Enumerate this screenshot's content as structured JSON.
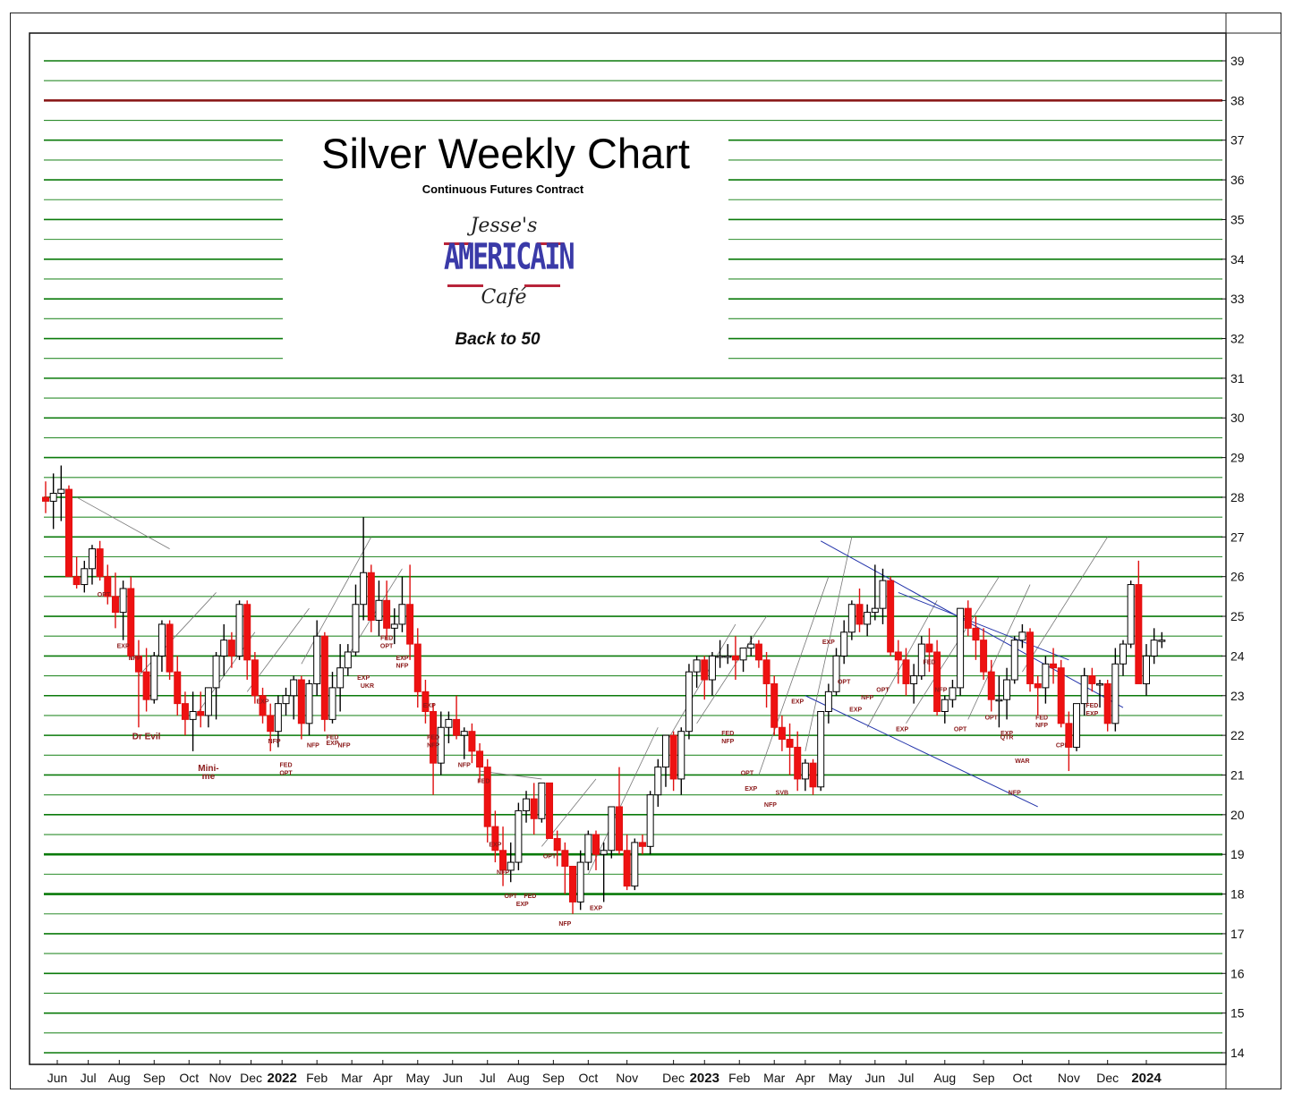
{
  "header": {
    "title": "Silver Weekly Chart",
    "subtitle": "Continuous Futures Contract",
    "logo_top": "Jesse's",
    "logo_mid": "AMERICAIN",
    "logo_bot": "Café",
    "tagline": "Back to 50"
  },
  "colors": {
    "up": "#ffffff",
    "down": "#ee1111",
    "grid": "#0a7a0a",
    "highlight": "#8b1a1a",
    "channel": "#2233aa",
    "annotation": "#8b1a1a"
  },
  "chart_data": {
    "type": "candlestick",
    "y_range": [
      14,
      39
    ],
    "y_ticks": [
      14,
      15,
      16,
      17,
      18,
      19,
      20,
      21,
      22,
      23,
      24,
      25,
      26,
      27,
      28,
      29,
      30,
      31,
      32,
      33,
      34,
      35,
      36,
      37,
      38,
      39
    ],
    "grid": true,
    "highlight_level": 38,
    "x_months": [
      "Jun",
      "Jul",
      "Aug",
      "Sep",
      "Oct",
      "Nov",
      "Dec",
      "2022",
      "Feb",
      "Mar",
      "Apr",
      "May",
      "Jun",
      "Jul",
      "Aug",
      "Sep",
      "Oct",
      "Nov",
      "Dec",
      "2023",
      "Feb",
      "Mar",
      "Apr",
      "May",
      "Jun",
      "Jul",
      "Aug",
      "Sep",
      "Oct",
      "Nov",
      "Dec",
      "2024"
    ],
    "x_month_weeks": [
      1.5,
      5.5,
      9.5,
      14,
      18.5,
      22.5,
      26.5,
      30.5,
      35,
      39.5,
      43.5,
      48,
      52.5,
      57,
      61,
      65.5,
      70,
      75,
      81,
      85,
      89.5,
      94,
      98,
      102.5,
      107,
      111,
      116,
      121,
      126,
      132,
      137,
      142
    ],
    "week_count": 143,
    "candles": [
      [
        28.0,
        28.4,
        27.6,
        27.9
      ],
      [
        27.9,
        28.6,
        27.2,
        28.1
      ],
      [
        28.1,
        28.8,
        27.4,
        28.2
      ],
      [
        28.2,
        28.3,
        26.0,
        26.0
      ],
      [
        26.0,
        26.5,
        25.7,
        25.8
      ],
      [
        25.8,
        26.4,
        25.6,
        26.2
      ],
      [
        26.2,
        26.8,
        25.8,
        26.7
      ],
      [
        26.7,
        26.9,
        25.9,
        26.0
      ],
      [
        26.0,
        26.3,
        25.3,
        25.5
      ],
      [
        25.5,
        26.1,
        24.7,
        25.1
      ],
      [
        25.1,
        25.9,
        24.4,
        25.7
      ],
      [
        25.7,
        26.0,
        23.9,
        24.0
      ],
      [
        24.0,
        24.4,
        22.2,
        23.6
      ],
      [
        23.6,
        24.2,
        22.6,
        22.9
      ],
      [
        22.9,
        24.1,
        22.8,
        24.0
      ],
      [
        24.0,
        24.9,
        23.6,
        24.8
      ],
      [
        24.8,
        24.9,
        23.4,
        23.6
      ],
      [
        23.6,
        24.0,
        22.5,
        22.8
      ],
      [
        22.8,
        23.1,
        22.0,
        22.4
      ],
      [
        22.4,
        23.1,
        21.6,
        22.6
      ],
      [
        22.6,
        23.1,
        22.2,
        22.5
      ],
      [
        22.5,
        23.2,
        22.2,
        23.2
      ],
      [
        23.2,
        24.1,
        22.4,
        24.0
      ],
      [
        24.0,
        24.8,
        23.5,
        24.4
      ],
      [
        24.4,
        24.6,
        23.7,
        24.0
      ],
      [
        24.0,
        25.4,
        23.9,
        25.3
      ],
      [
        25.3,
        25.4,
        23.4,
        23.9
      ],
      [
        23.9,
        24.1,
        22.8,
        23.0
      ],
      [
        23.0,
        23.2,
        22.3,
        22.5
      ],
      [
        22.5,
        22.8,
        21.6,
        22.1
      ],
      [
        22.1,
        23.0,
        21.7,
        22.8
      ],
      [
        22.8,
        23.2,
        22.5,
        23.0
      ],
      [
        23.0,
        23.5,
        22.4,
        23.4
      ],
      [
        23.4,
        23.5,
        21.9,
        22.3
      ],
      [
        22.3,
        23.4,
        22.0,
        23.3
      ],
      [
        23.3,
        24.9,
        23.0,
        24.5
      ],
      [
        24.5,
        24.6,
        22.1,
        22.4
      ],
      [
        22.4,
        23.6,
        22.3,
        23.2
      ],
      [
        23.2,
        24.3,
        22.6,
        23.7
      ],
      [
        23.7,
        24.3,
        23.5,
        24.1
      ],
      [
        24.1,
        25.8,
        24.0,
        25.3
      ],
      [
        25.3,
        27.5,
        24.9,
        26.1
      ],
      [
        26.1,
        26.3,
        24.6,
        24.9
      ],
      [
        24.9,
        25.9,
        24.5,
        25.4
      ],
      [
        25.4,
        25.9,
        24.4,
        24.7
      ],
      [
        24.7,
        25.2,
        24.3,
        24.8
      ],
      [
        24.8,
        26.0,
        24.6,
        25.3
      ],
      [
        25.3,
        26.3,
        23.9,
        24.3
      ],
      [
        24.3,
        24.7,
        22.7,
        23.1
      ],
      [
        23.1,
        23.4,
        22.3,
        22.6
      ],
      [
        22.6,
        22.8,
        20.5,
        21.3
      ],
      [
        21.3,
        22.6,
        21.0,
        22.2
      ],
      [
        22.2,
        22.6,
        21.8,
        22.4
      ],
      [
        22.4,
        23.0,
        21.9,
        22.0
      ],
      [
        22.0,
        22.2,
        21.4,
        22.1
      ],
      [
        22.1,
        22.3,
        21.3,
        21.6
      ],
      [
        21.6,
        21.8,
        20.8,
        21.2
      ],
      [
        21.2,
        21.4,
        19.3,
        19.7
      ],
      [
        19.7,
        20.1,
        18.8,
        19.1
      ],
      [
        19.1,
        19.7,
        18.2,
        18.6
      ],
      [
        18.6,
        19.3,
        18.3,
        18.8
      ],
      [
        18.8,
        20.3,
        18.6,
        20.1
      ],
      [
        20.1,
        20.6,
        19.8,
        20.4
      ],
      [
        20.4,
        20.8,
        19.5,
        19.9
      ],
      [
        19.9,
        20.8,
        19.8,
        20.8
      ],
      [
        20.8,
        20.8,
        19.4,
        19.4
      ],
      [
        19.4,
        19.6,
        18.7,
        19.1
      ],
      [
        19.1,
        19.3,
        18.0,
        18.7
      ],
      [
        18.7,
        18.7,
        17.5,
        17.8
      ],
      [
        17.8,
        19.1,
        17.6,
        18.8
      ],
      [
        18.8,
        19.6,
        18.6,
        19.5
      ],
      [
        19.5,
        19.6,
        18.6,
        19.0
      ],
      [
        19.0,
        19.3,
        17.8,
        19.1
      ],
      [
        19.1,
        20.2,
        18.9,
        20.2
      ],
      [
        20.2,
        21.2,
        19.0,
        19.1
      ],
      [
        19.1,
        19.5,
        18.1,
        18.2
      ],
      [
        18.2,
        19.4,
        18.1,
        19.3
      ],
      [
        19.3,
        19.5,
        19.0,
        19.2
      ],
      [
        19.2,
        20.6,
        19.0,
        20.5
      ],
      [
        20.5,
        21.4,
        20.2,
        21.2
      ],
      [
        21.2,
        21.8,
        20.7,
        22.0
      ],
      [
        22.0,
        22.1,
        20.6,
        20.9
      ],
      [
        20.9,
        22.2,
        20.5,
        22.1
      ],
      [
        22.1,
        23.8,
        21.9,
        23.6
      ],
      [
        23.6,
        24.0,
        23.2,
        23.9
      ],
      [
        23.9,
        24.0,
        22.9,
        23.4
      ],
      [
        23.4,
        24.1,
        23.0,
        24.0
      ],
      [
        24.0,
        24.4,
        23.7,
        24.0
      ],
      [
        24.0,
        24.3,
        23.8,
        24.0
      ],
      [
        24.0,
        24.5,
        23.4,
        23.9
      ],
      [
        23.9,
        24.2,
        23.6,
        24.2
      ],
      [
        24.2,
        24.5,
        24.0,
        24.3
      ],
      [
        24.3,
        24.4,
        23.7,
        23.9
      ],
      [
        23.9,
        24.1,
        22.7,
        23.3
      ],
      [
        23.3,
        23.5,
        22.0,
        22.2
      ],
      [
        22.2,
        22.5,
        21.6,
        21.9
      ],
      [
        21.9,
        22.3,
        21.0,
        21.7
      ],
      [
        21.7,
        22.1,
        20.6,
        20.9
      ],
      [
        20.9,
        21.4,
        20.6,
        21.3
      ],
      [
        21.3,
        21.4,
        20.5,
        20.7
      ],
      [
        20.7,
        22.6,
        20.6,
        22.6
      ],
      [
        22.6,
        23.3,
        22.3,
        23.1
      ],
      [
        23.1,
        24.2,
        23.0,
        24.0
      ],
      [
        24.0,
        24.9,
        23.8,
        24.6
      ],
      [
        24.6,
        25.4,
        24.4,
        25.3
      ],
      [
        25.3,
        25.7,
        24.6,
        24.8
      ],
      [
        24.8,
        25.3,
        24.5,
        25.1
      ],
      [
        25.1,
        26.3,
        24.9,
        25.2
      ],
      [
        25.2,
        26.2,
        24.8,
        25.9
      ],
      [
        25.9,
        26.0,
        24.0,
        24.1
      ],
      [
        24.1,
        24.4,
        23.3,
        23.9
      ],
      [
        23.9,
        24.2,
        23.0,
        23.3
      ],
      [
        23.3,
        23.8,
        22.8,
        23.5
      ],
      [
        23.5,
        24.5,
        23.4,
        24.3
      ],
      [
        24.3,
        24.7,
        23.6,
        24.1
      ],
      [
        24.1,
        24.4,
        22.5,
        22.6
      ],
      [
        22.6,
        23.0,
        22.3,
        22.9
      ],
      [
        22.9,
        23.4,
        22.7,
        23.2
      ],
      [
        23.2,
        25.2,
        23.0,
        25.2
      ],
      [
        25.2,
        25.4,
        24.5,
        24.7
      ],
      [
        24.7,
        25.0,
        23.9,
        24.4
      ],
      [
        24.4,
        24.7,
        23.4,
        23.6
      ],
      [
        23.6,
        23.9,
        22.6,
        22.9
      ],
      [
        22.9,
        23.5,
        22.2,
        22.9
      ],
      [
        22.9,
        23.7,
        22.4,
        23.4
      ],
      [
        23.4,
        24.5,
        23.3,
        24.4
      ],
      [
        24.4,
        24.8,
        24.2,
        24.6
      ],
      [
        24.6,
        24.7,
        23.1,
        23.3
      ],
      [
        23.3,
        23.5,
        22.5,
        23.2
      ],
      [
        23.2,
        24.0,
        22.8,
        23.8
      ],
      [
        23.8,
        24.2,
        23.3,
        23.7
      ],
      [
        23.7,
        23.9,
        22.2,
        22.3
      ],
      [
        22.3,
        22.6,
        21.1,
        21.7
      ],
      [
        21.7,
        22.7,
        21.6,
        22.8
      ],
      [
        22.8,
        23.7,
        22.5,
        23.5
      ],
      [
        23.5,
        23.7,
        23.1,
        23.3
      ],
      [
        23.3,
        23.4,
        22.7,
        23.3
      ],
      [
        23.3,
        23.4,
        22.1,
        22.3
      ],
      [
        22.3,
        24.2,
        22.1,
        23.8
      ],
      [
        23.8,
        24.4,
        23.5,
        24.3
      ],
      [
        24.3,
        25.9,
        24.2,
        25.8
      ],
      [
        25.8,
        26.4,
        23.3,
        23.3
      ],
      [
        23.3,
        24.3,
        23.0,
        24.0
      ],
      [
        24.0,
        24.7,
        23.8,
        24.4
      ],
      [
        24.4,
        24.6,
        24.2,
        24.4
      ]
    ],
    "annotations": [
      {
        "text": "OPT",
        "week": 7.5,
        "price": 25.5
      },
      {
        "text": "EXP",
        "week": 10,
        "price": 24.2
      },
      {
        "text": "NFP",
        "week": 11.5,
        "price": 23.9
      },
      {
        "text": "Dr Evil",
        "week": 13,
        "price": 21.9
      },
      {
        "text": "Mini-",
        "week": 21,
        "price": 21.1
      },
      {
        "text": "me",
        "week": 21,
        "price": 20.9
      },
      {
        "text": "EXP",
        "week": 28,
        "price": 22.8
      },
      {
        "text": "NFP",
        "week": 29.5,
        "price": 21.8
      },
      {
        "text": "FED",
        "week": 31,
        "price": 21.2
      },
      {
        "text": "OPT",
        "week": 31,
        "price": 21.0
      },
      {
        "text": "NFP",
        "week": 34.5,
        "price": 21.7
      },
      {
        "text": "FED",
        "week": 37,
        "price": 21.9
      },
      {
        "text": "EXP",
        "week": 37,
        "price": 21.75
      },
      {
        "text": "NFP",
        "week": 38.5,
        "price": 21.7
      },
      {
        "text": "EXP",
        "week": 41,
        "price": 23.4
      },
      {
        "text": "UKR",
        "week": 41.5,
        "price": 23.2
      },
      {
        "text": "FED",
        "week": 44,
        "price": 24.4
      },
      {
        "text": "OPT",
        "week": 44,
        "price": 24.2
      },
      {
        "text": "EXP",
        "week": 46,
        "price": 23.9
      },
      {
        "text": "NFP",
        "week": 46,
        "price": 23.7
      },
      {
        "text": "EXP",
        "week": 49.5,
        "price": 22.7
      },
      {
        "text": "FED",
        "week": 50,
        "price": 21.9
      },
      {
        "text": "NFP",
        "week": 50,
        "price": 21.7
      },
      {
        "text": "NFP",
        "week": 54,
        "price": 21.2
      },
      {
        "text": "FED",
        "week": 56.5,
        "price": 20.8
      },
      {
        "text": "EXP",
        "week": 58,
        "price": 19.2
      },
      {
        "text": "NFP",
        "week": 59,
        "price": 18.5
      },
      {
        "text": "OPT",
        "week": 60,
        "price": 17.9
      },
      {
        "text": "EXP",
        "week": 61.5,
        "price": 17.7
      },
      {
        "text": "FED",
        "week": 62.5,
        "price": 17.9
      },
      {
        "text": "OPT",
        "week": 65,
        "price": 18.9
      },
      {
        "text": "NFP",
        "week": 67,
        "price": 17.2
      },
      {
        "text": "EXP",
        "week": 71,
        "price": 17.6
      },
      {
        "text": "FED",
        "week": 88,
        "price": 22.0
      },
      {
        "text": "NFP",
        "week": 88,
        "price": 21.8
      },
      {
        "text": "OPT",
        "week": 90.5,
        "price": 21.0
      },
      {
        "text": "EXP",
        "week": 91,
        "price": 20.6
      },
      {
        "text": "SVB",
        "week": 95,
        "price": 20.5
      },
      {
        "text": "NFP",
        "week": 93.5,
        "price": 20.2
      },
      {
        "text": "EXP",
        "week": 97,
        "price": 22.8
      },
      {
        "text": "EXP",
        "week": 101,
        "price": 24.3
      },
      {
        "text": "OPT",
        "week": 103,
        "price": 23.3
      },
      {
        "text": "EXP",
        "week": 104.5,
        "price": 22.6
      },
      {
        "text": "NFP",
        "week": 106,
        "price": 22.9
      },
      {
        "text": "OPT",
        "week": 108,
        "price": 23.1
      },
      {
        "text": "EXP",
        "week": 110.5,
        "price": 22.1
      },
      {
        "text": "FED",
        "week": 114,
        "price": 23.8
      },
      {
        "text": "NFP",
        "week": 115.5,
        "price": 23.1
      },
      {
        "text": "OPT",
        "week": 118,
        "price": 22.1
      },
      {
        "text": "OPT",
        "week": 122,
        "price": 22.4
      },
      {
        "text": "EXP",
        "week": 124,
        "price": 22.0
      },
      {
        "text": "QTR",
        "week": 124,
        "price": 21.9
      },
      {
        "text": "WAR",
        "week": 126,
        "price": 21.3
      },
      {
        "text": "NFP",
        "week": 125,
        "price": 20.5
      },
      {
        "text": "FED",
        "week": 128.5,
        "price": 22.4
      },
      {
        "text": "NFP",
        "week": 128.5,
        "price": 22.2
      },
      {
        "text": "CPI",
        "week": 131,
        "price": 21.7
      },
      {
        "text": "FED",
        "week": 135,
        "price": 22.7
      },
      {
        "text": "EXP",
        "week": 135,
        "price": 22.5
      }
    ]
  }
}
